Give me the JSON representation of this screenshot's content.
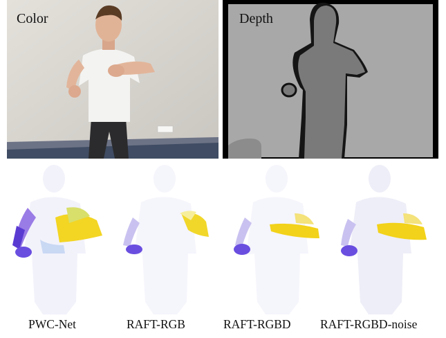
{
  "top_panels": {
    "color_label": "Color",
    "depth_label": "Depth"
  },
  "captions": [
    "PWC-Net",
    "RAFT-RGB",
    "RAFT-RGBD",
    "RAFT-RGBD-noise"
  ],
  "colors": {
    "flow_purple": "#6a4ee0",
    "flow_yellow": "#f2d21a",
    "flow_background": "#f4f4fb",
    "depth_background": "#a8a8a8",
    "depth_person": "#7a7a7a"
  }
}
